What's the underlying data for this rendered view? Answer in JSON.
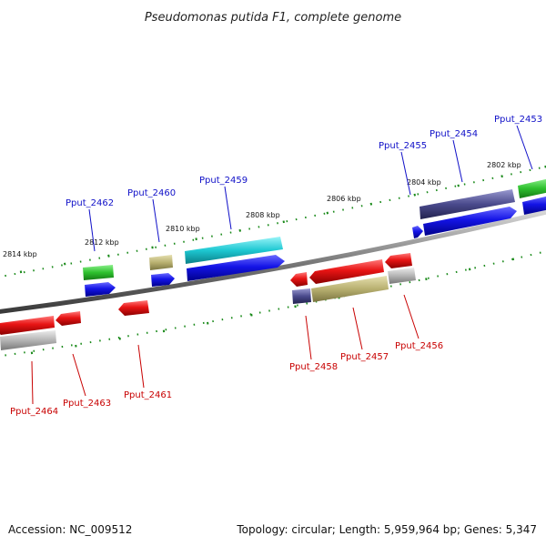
{
  "title": "Pseudomonas putida F1, complete genome",
  "footer": {
    "accession": "Accession: NC_009512",
    "summary": "Topology: circular; Length: 5,959,964 bp; Genes: 5,347"
  },
  "scale_labels": [
    "2814 kbp",
    "2812 kbp",
    "2810 kbp",
    "2808 kbp",
    "2806 kbp",
    "2804 kbp",
    "2802 kbp"
  ],
  "genes_top": [
    "Pput_2462",
    "Pput_2460",
    "Pput_2459",
    "Pput_2455",
    "Pput_2454",
    "Pput_2453"
  ],
  "genes_bottom": [
    "Pput_2464",
    "Pput_2463",
    "Pput_2461",
    "Pput_2458",
    "Pput_2457",
    "Pput_2456"
  ],
  "colors": {
    "forward_strand_label": "#1010c8",
    "reverse_strand_label": "#c80000",
    "cds_blue": "#1414e6",
    "cds_red": "#e81414",
    "cog_green": "#2ec02e",
    "cog_olive": "#b8b070",
    "cog_cyan": "#1ec8d2",
    "cog_slate": "#4a4a8c",
    "cog_gray": "#b4b4b4",
    "tick_green": "#1a8a1a"
  }
}
